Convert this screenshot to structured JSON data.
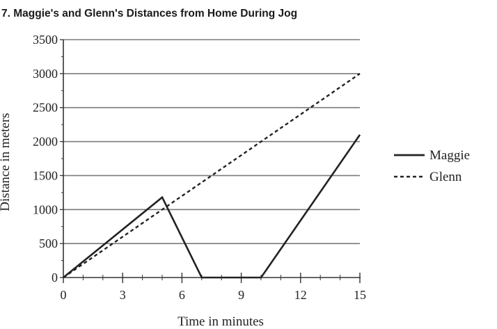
{
  "chart_data": {
    "type": "line",
    "title": "7. Maggie's and Glenn's Distances from Home During Jog",
    "xlabel": "Time in minutes",
    "ylabel": "Distance in meters",
    "xlim": [
      0,
      15
    ],
    "ylim": [
      0,
      3500
    ],
    "xticks": [
      0,
      3,
      6,
      9,
      12,
      15
    ],
    "yticks": [
      0,
      500,
      1000,
      1500,
      2000,
      2500,
      3000,
      3500
    ],
    "grid": "horizontal",
    "legend_position": "right",
    "series": [
      {
        "name": "Maggie",
        "style": "solid",
        "color": "#222222",
        "points": [
          [
            0,
            0
          ],
          [
            5,
            1180
          ],
          [
            7,
            0
          ],
          [
            10,
            0
          ],
          [
            15,
            2100
          ]
        ]
      },
      {
        "name": "Glenn",
        "style": "dashed",
        "color": "#222222",
        "points": [
          [
            0,
            0
          ],
          [
            15,
            3000
          ]
        ]
      }
    ]
  }
}
